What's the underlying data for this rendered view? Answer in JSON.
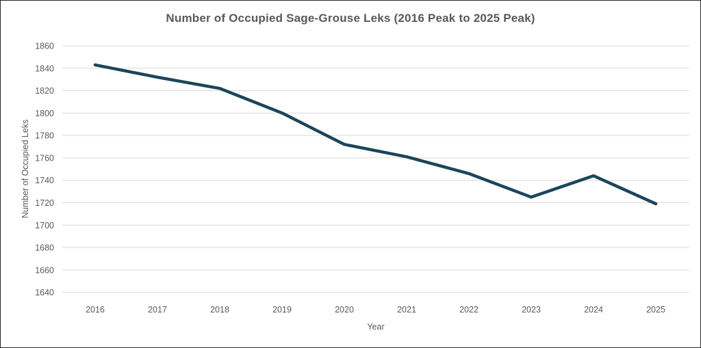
{
  "chart_data": {
    "type": "line",
    "title": "Number of Occupied Sage-Grouse Leks (2016 Peak to 2025 Peak)",
    "xlabel": "Year",
    "ylabel": "Number of Occupied Leks",
    "categories": [
      "2016",
      "2017",
      "2018",
      "2019",
      "2020",
      "2021",
      "2022",
      "2023",
      "2024",
      "2025"
    ],
    "series": [
      {
        "name": "Occupied Leks",
        "values": [
          1843,
          1832,
          1822,
          1800,
          1772,
          1761,
          1746,
          1725,
          1744,
          1719
        ]
      }
    ],
    "ylim": [
      1640,
      1860
    ],
    "ytick_step": 20,
    "yticks": [
      1640,
      1660,
      1680,
      1700,
      1720,
      1740,
      1760,
      1780,
      1800,
      1820,
      1840,
      1860
    ],
    "grid": true,
    "legend": "none",
    "colors": {
      "line": "#1B455A",
      "grid": "#D9D9D9",
      "text": "#595959",
      "frame_border": "#262626",
      "background": "#FFFFFF"
    }
  }
}
